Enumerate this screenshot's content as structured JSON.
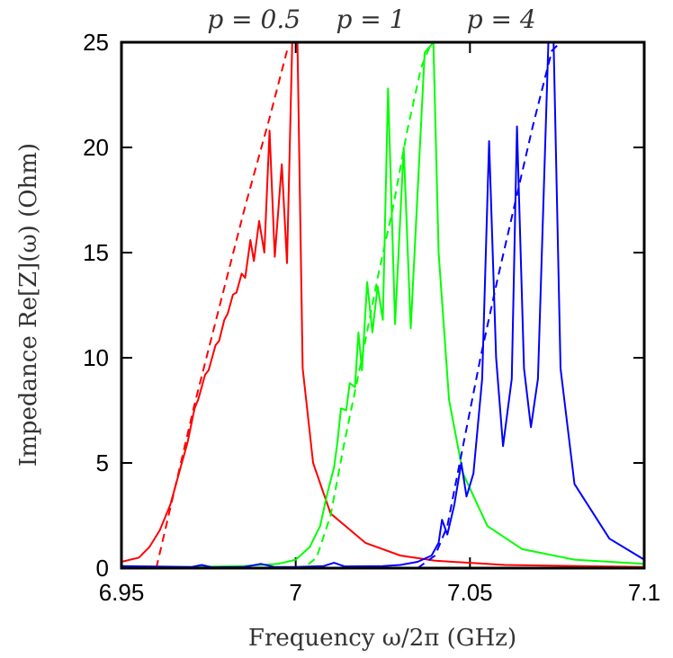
{
  "chart_data": {
    "type": "line",
    "xlabel": "Frequency ω/2π (GHz)",
    "ylabel": "Impedance Re[Z](ω) (Ohm)",
    "xlim": [
      6.95,
      7.1
    ],
    "ylim": [
      0,
      25
    ],
    "xticks": [
      6.95,
      7.0,
      7.05,
      7.1
    ],
    "xtick_labels": [
      "6.95",
      "7",
      "7.05",
      "7.1"
    ],
    "yticks": [
      0,
      5,
      10,
      15,
      20,
      25
    ],
    "ytick_labels": [
      "0",
      "5",
      "10",
      "15",
      "20",
      "25"
    ],
    "annotations": [
      {
        "text": "p = 0.5",
        "x": 6.988
      },
      {
        "text": "p = 1",
        "x": 7.0215
      },
      {
        "text": "p = 4",
        "x": 7.059
      }
    ],
    "series": [
      {
        "name": "p = 0.5 (solid)",
        "color": "#ff0000",
        "style": "solid",
        "points": [
          [
            6.95,
            0.3
          ],
          [
            6.955,
            0.5
          ],
          [
            6.958,
            1.0
          ],
          [
            6.961,
            1.8
          ],
          [
            6.964,
            3.0
          ],
          [
            6.967,
            4.8
          ],
          [
            6.969,
            6.0
          ],
          [
            6.971,
            7.6
          ],
          [
            6.972,
            8.0
          ],
          [
            6.974,
            9.2
          ],
          [
            6.975,
            9.4
          ],
          [
            6.977,
            10.6
          ],
          [
            6.978,
            10.8
          ],
          [
            6.9795,
            11.8
          ],
          [
            6.9805,
            12.1
          ],
          [
            6.982,
            13.0
          ],
          [
            6.983,
            13.1
          ],
          [
            6.9845,
            14.0
          ],
          [
            6.9855,
            13.8
          ],
          [
            6.987,
            15.6
          ],
          [
            6.988,
            14.6
          ],
          [
            6.9895,
            16.5
          ],
          [
            6.991,
            15.0
          ],
          [
            6.9925,
            20.8
          ],
          [
            6.994,
            14.8
          ],
          [
            6.996,
            19.2
          ],
          [
            6.9975,
            14.5
          ],
          [
            6.999,
            25.0
          ],
          [
            7.0005,
            25.0
          ],
          [
            7.002,
            9.5
          ],
          [
            7.005,
            5.0
          ],
          [
            7.01,
            2.6
          ],
          [
            7.02,
            1.2
          ],
          [
            7.03,
            0.6
          ],
          [
            7.04,
            0.35
          ],
          [
            7.06,
            0.15
          ],
          [
            7.1,
            0.05
          ]
        ]
      },
      {
        "name": "p = 0.5 (dashed)",
        "color": "#ff0000",
        "style": "dashed",
        "points": [
          [
            6.96,
            0.0
          ],
          [
            6.971,
            7.8
          ],
          [
            6.979,
            13.0
          ],
          [
            6.9855,
            17.2
          ],
          [
            6.9925,
            21.4
          ],
          [
            6.9975,
            24.6
          ]
        ]
      },
      {
        "name": "p = 1 (solid)",
        "color": "#00ff00",
        "style": "solid",
        "points": [
          [
            6.95,
            0.02
          ],
          [
            6.97,
            0.05
          ],
          [
            6.985,
            0.1
          ],
          [
            6.995,
            0.2
          ],
          [
            7.0,
            0.4
          ],
          [
            7.004,
            1.0
          ],
          [
            7.007,
            2.0
          ],
          [
            7.009,
            3.5
          ],
          [
            7.011,
            4.8
          ],
          [
            7.012,
            6.0
          ],
          [
            7.013,
            7.6
          ],
          [
            7.0145,
            7.5
          ],
          [
            7.0155,
            8.8
          ],
          [
            7.017,
            8.6
          ],
          [
            7.018,
            11.2
          ],
          [
            7.019,
            9.4
          ],
          [
            7.0205,
            13.6
          ],
          [
            7.022,
            11.2
          ],
          [
            7.0235,
            13.4
          ],
          [
            7.025,
            11.8
          ],
          [
            7.0265,
            22.8
          ],
          [
            7.0285,
            11.6
          ],
          [
            7.031,
            20.0
          ],
          [
            7.033,
            11.4
          ],
          [
            7.037,
            24.5
          ],
          [
            7.0395,
            25.0
          ],
          [
            7.041,
            15.0
          ],
          [
            7.044,
            8.0
          ],
          [
            7.048,
            4.5
          ],
          [
            7.055,
            2.0
          ],
          [
            7.065,
            0.9
          ],
          [
            7.08,
            0.4
          ],
          [
            7.1,
            0.2
          ]
        ]
      },
      {
        "name": "p = 1 (dashed)",
        "color": "#00ff00",
        "style": "dashed",
        "points": [
          [
            7.0,
            0.0
          ],
          [
            7.003,
            0.1
          ],
          [
            7.006,
            0.5
          ],
          [
            7.01,
            2.5
          ],
          [
            7.014,
            6.0
          ],
          [
            7.019,
            10.0
          ],
          [
            7.0235,
            13.8
          ],
          [
            7.028,
            17.2
          ],
          [
            7.032,
            20.8
          ],
          [
            7.036,
            23.8
          ],
          [
            7.039,
            25.0
          ]
        ]
      },
      {
        "name": "p = 4 (solid)",
        "color": "#0000ff",
        "style": "solid",
        "points": [
          [
            6.95,
            0.1
          ],
          [
            6.97,
            0.05
          ],
          [
            6.973,
            0.15
          ],
          [
            6.976,
            0.04
          ],
          [
            6.985,
            0.05
          ],
          [
            6.99,
            0.2
          ],
          [
            6.994,
            0.05
          ],
          [
            7.0,
            0.05
          ],
          [
            7.008,
            0.1
          ],
          [
            7.011,
            0.25
          ],
          [
            7.014,
            0.08
          ],
          [
            7.025,
            0.1
          ],
          [
            7.03,
            0.15
          ],
          [
            7.035,
            0.3
          ],
          [
            7.039,
            0.6
          ],
          [
            7.041,
            1.2
          ],
          [
            7.042,
            2.3
          ],
          [
            7.0435,
            1.6
          ],
          [
            7.0455,
            3.0
          ],
          [
            7.0475,
            5.0
          ],
          [
            7.049,
            3.4
          ],
          [
            7.051,
            4.5
          ],
          [
            7.0535,
            9.0
          ],
          [
            7.0555,
            20.3
          ],
          [
            7.0575,
            10.0
          ],
          [
            7.0595,
            5.8
          ],
          [
            7.062,
            9.0
          ],
          [
            7.0635,
            21.0
          ],
          [
            7.0655,
            9.5
          ],
          [
            7.0675,
            6.7
          ],
          [
            7.0695,
            9.0
          ],
          [
            7.0725,
            25.0
          ],
          [
            7.074,
            25.0
          ],
          [
            7.076,
            9.5
          ],
          [
            7.08,
            4.0
          ],
          [
            7.09,
            1.4
          ],
          [
            7.1,
            0.4
          ]
        ]
      },
      {
        "name": "p = 4 (dashed)",
        "color": "#0000ff",
        "style": "dashed",
        "points": [
          [
            7.035,
            0.0
          ],
          [
            7.04,
            0.6
          ],
          [
            7.0435,
            2.0
          ],
          [
            7.048,
            5.8
          ],
          [
            7.053,
            10.0
          ],
          [
            7.058,
            13.8
          ],
          [
            7.063,
            17.4
          ],
          [
            7.068,
            21.0
          ],
          [
            7.0735,
            24.6
          ],
          [
            7.076,
            25.0
          ]
        ]
      }
    ]
  }
}
